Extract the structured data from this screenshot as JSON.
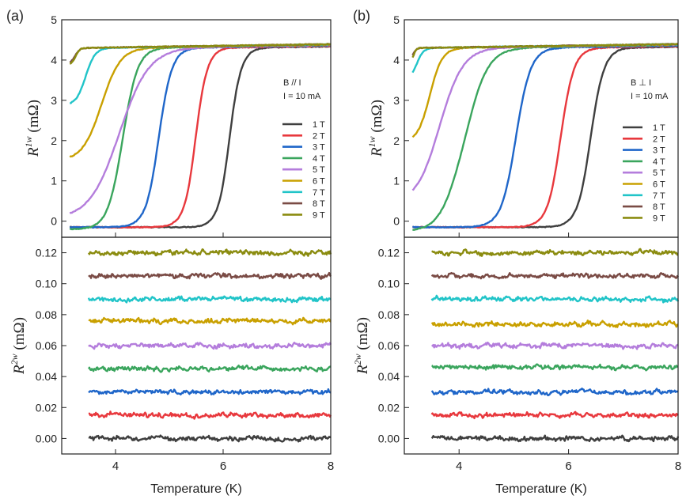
{
  "figure": {
    "panel_labels": [
      "(a)",
      "(b)"
    ],
    "xlabel": "Temperature (K)"
  },
  "chart_data": [
    {
      "type": "line",
      "panel": "(a)",
      "title": "",
      "annotation": [
        "B // I",
        "I = 10 mA"
      ],
      "xlabel": "",
      "ylabel": "R^1w (mΩ)",
      "ylabel_main": "R",
      "ylabel_sup": "1w",
      "ylabel_unit": " (mΩ)",
      "xlim": [
        3,
        8
      ],
      "ylim": [
        -0.4,
        5
      ],
      "yticks": [
        0,
        1,
        2,
        3,
        4,
        5
      ],
      "series": [
        {
          "name": "1 T",
          "color": "#3f3f3f",
          "tc": 6.25,
          "width": 0.45,
          "start": -0.15,
          "dip": -0.25
        },
        {
          "name": "2 T",
          "color": "#e8383d",
          "tc": 5.62,
          "width": 0.45,
          "start": -0.15,
          "dip": -0.25
        },
        {
          "name": "3 T",
          "color": "#1f66c9",
          "tc": 4.95,
          "width": 0.5,
          "start": -0.15,
          "dip": -0.22
        },
        {
          "name": "4 T",
          "color": "#3aa55d",
          "tc": 4.3,
          "width": 0.55,
          "start": -0.2,
          "dip": -0.18
        },
        {
          "name": "5 T",
          "color": "#b47ddc",
          "tc": 4.4,
          "width": 1.1,
          "start": 0.05,
          "dip": 0
        },
        {
          "name": "6 T",
          "color": "#c9a000",
          "tc": 3.95,
          "width": 0.7,
          "start": 1.5,
          "dip": 0
        },
        {
          "name": "7 T",
          "color": "#21c4c8",
          "tc": 3.55,
          "width": 0.35,
          "start": 2.88,
          "dip": 0
        },
        {
          "name": "8 T",
          "color": "#7a4b45",
          "tc": 3.3,
          "width": 0.18,
          "start": 3.9,
          "dip": 0
        },
        {
          "name": "9 T",
          "color": "#8b8c10",
          "tc": 3.3,
          "width": 0.15,
          "start": 3.88,
          "dip": 0
        }
      ]
    },
    {
      "type": "line",
      "panel": "(a)",
      "title": "",
      "xlabel": "Temperature (K)",
      "ylabel": "R^2w (mΩ)",
      "ylabel_main": "R",
      "ylabel_sup": "2w",
      "ylabel_unit": " (mΩ)",
      "xlim": [
        3,
        8
      ],
      "ylim": [
        -0.01,
        0.13
      ],
      "yticks": [
        0.0,
        0.02,
        0.04,
        0.06,
        0.08,
        0.1,
        0.12
      ],
      "ytick_labels": [
        "0.00",
        "0.02",
        "0.04",
        "0.06",
        "0.08",
        "0.10",
        "0.12"
      ],
      "xticks": [
        4,
        6,
        8
      ],
      "series": [
        {
          "name": "1 T",
          "color": "#3f3f3f",
          "x_range": [
            3.5,
            8
          ],
          "level": 0.0
        },
        {
          "name": "2 T",
          "color": "#e8383d",
          "x_range": [
            3.5,
            8
          ],
          "level": 0.015
        },
        {
          "name": "3 T",
          "color": "#1f66c9",
          "x_range": [
            3.5,
            8
          ],
          "level": 0.03
        },
        {
          "name": "4 T",
          "color": "#3aa55d",
          "x_range": [
            3.5,
            8
          ],
          "level": 0.045
        },
        {
          "name": "5 T",
          "color": "#b47ddc",
          "x_range": [
            3.5,
            8
          ],
          "level": 0.06
        },
        {
          "name": "6 T",
          "color": "#c9a000",
          "x_range": [
            3.5,
            8
          ],
          "level": 0.076
        },
        {
          "name": "7 T",
          "color": "#21c4c8",
          "x_range": [
            3.5,
            8
          ],
          "level": 0.09
        },
        {
          "name": "8 T",
          "color": "#7a4b45",
          "x_range": [
            3.5,
            8
          ],
          "level": 0.105
        },
        {
          "name": "9 T",
          "color": "#8b8c10",
          "x_range": [
            3.5,
            8
          ],
          "level": 0.12
        }
      ]
    },
    {
      "type": "line",
      "panel": "(b)",
      "title": "",
      "annotation": [
        "B ⊥ I",
        "I = 10 mA"
      ],
      "xlabel": "",
      "ylabel": "R^1w (mΩ)",
      "ylabel_main": "R",
      "ylabel_sup": "1w",
      "ylabel_unit": " (mΩ)",
      "xlim": [
        3,
        8
      ],
      "ylim": [
        -0.4,
        5
      ],
      "yticks": [
        0,
        1,
        2,
        3,
        4,
        5
      ],
      "series": [
        {
          "name": "1 T",
          "color": "#3f3f3f",
          "tc": 6.55,
          "width": 0.5,
          "start": -0.15,
          "dip": -0.22
        },
        {
          "name": "2 T",
          "color": "#e8383d",
          "tc": 6.0,
          "width": 0.5,
          "start": -0.15,
          "dip": -0.22
        },
        {
          "name": "3 T",
          "color": "#1f66c9",
          "tc": 5.2,
          "width": 0.55,
          "start": -0.15,
          "dip": -0.2
        },
        {
          "name": "4 T",
          "color": "#3aa55d",
          "tc": 4.35,
          "width": 0.8,
          "start": -0.25,
          "dip": -0.15
        },
        {
          "name": "5 T",
          "color": "#b47ddc",
          "tc": 3.9,
          "width": 0.85,
          "start": 0.42,
          "dip": 0
        },
        {
          "name": "6 T",
          "color": "#c9a000",
          "tc": 3.6,
          "width": 0.45,
          "start": 1.95,
          "dip": 0
        },
        {
          "name": "7 T",
          "color": "#21c4c8",
          "tc": 3.3,
          "width": 0.25,
          "start": 3.5,
          "dip": 0
        },
        {
          "name": "8 T",
          "color": "#7a4b45",
          "tc": 3.2,
          "width": 0.12,
          "start": 4.0,
          "dip": 0
        },
        {
          "name": "9 T",
          "color": "#8b8c10",
          "tc": 3.2,
          "width": 0.1,
          "start": 3.95,
          "dip": 0
        }
      ]
    },
    {
      "type": "line",
      "panel": "(b)",
      "title": "",
      "xlabel": "Temperature (K)",
      "ylabel": "R^2w (mΩ)",
      "ylabel_main": "R",
      "ylabel_sup": "2w",
      "ylabel_unit": " (mΩ)",
      "xlim": [
        3,
        8
      ],
      "ylim": [
        -0.01,
        0.13
      ],
      "yticks": [
        0.0,
        0.02,
        0.04,
        0.06,
        0.08,
        0.1,
        0.12
      ],
      "ytick_labels": [
        "0.00",
        "0.02",
        "0.04",
        "0.06",
        "0.08",
        "0.10",
        "0.12"
      ],
      "xticks": [
        4,
        6,
        8
      ],
      "series": [
        {
          "name": "1 T",
          "color": "#3f3f3f",
          "x_range": [
            3.5,
            8
          ],
          "level": 0.0
        },
        {
          "name": "2 T",
          "color": "#e8383d",
          "x_range": [
            3.5,
            8
          ],
          "level": 0.015
        },
        {
          "name": "3 T",
          "color": "#1f66c9",
          "x_range": [
            3.5,
            8
          ],
          "level": 0.03
        },
        {
          "name": "4 T",
          "color": "#3aa55d",
          "x_range": [
            3.5,
            8
          ],
          "level": 0.046
        },
        {
          "name": "5 T",
          "color": "#b47ddc",
          "x_range": [
            3.5,
            8
          ],
          "level": 0.06
        },
        {
          "name": "6 T",
          "color": "#c9a000",
          "x_range": [
            3.5,
            8
          ],
          "level": 0.074
        },
        {
          "name": "7 T",
          "color": "#21c4c8",
          "x_range": [
            3.5,
            8
          ],
          "level": 0.09
        },
        {
          "name": "8 T",
          "color": "#7a4b45",
          "x_range": [
            3.5,
            8
          ],
          "level": 0.105
        },
        {
          "name": "9 T",
          "color": "#8b8c10",
          "x_range": [
            3.5,
            8
          ],
          "level": 0.12
        }
      ]
    }
  ]
}
